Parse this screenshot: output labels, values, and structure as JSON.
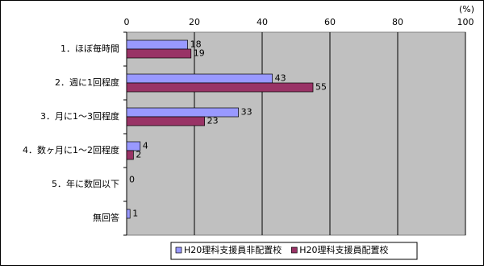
{
  "chart_data": {
    "type": "hbar",
    "unit_label": "(%)",
    "categories": [
      "1．ほぼ毎時間",
      "2．週に1回程度",
      "3．月に1～3回程度",
      "4．数ヶ月に1～2回程度",
      "5．年に数回以下",
      "無回答"
    ],
    "series": [
      {
        "name": "H20理科支援員非配置校",
        "color": "#9999ff",
        "values": [
          18,
          43,
          33,
          4,
          0,
          1
        ]
      },
      {
        "name": "H20理科支援員配置校",
        "color": "#993366",
        "values": [
          19,
          55,
          23,
          2,
          null,
          null
        ]
      }
    ],
    "xlim": [
      0,
      100
    ],
    "xticks": [
      0,
      20,
      40,
      60,
      80,
      100
    ],
    "grid": true,
    "legend": "bottom"
  }
}
